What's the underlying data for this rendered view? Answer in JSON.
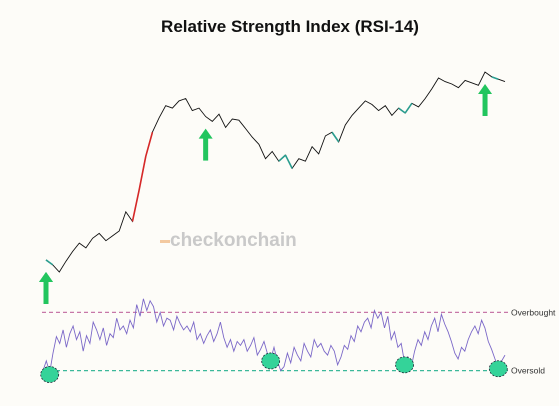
{
  "chart_data": {
    "type": "line",
    "title": "Relative Strength Index (RSI-14)",
    "watermark": "checkonchain",
    "levels": {
      "overbought_label": "Overbought",
      "oversold_label": "Oversold"
    },
    "colors": {
      "price": "#111111",
      "rsi": "#7b68c8",
      "overbought_line": "#c777a8",
      "oversold_line": "#3cb89a",
      "arrow": "#22c55e",
      "marker_fill": "#34d399",
      "overbought_highlight": "#d62828",
      "oversold_highlight": "#2a9d8f",
      "background": "#fdfcf8"
    },
    "price": [
      [
        0,
        44
      ],
      [
        2,
        40
      ],
      [
        4,
        34
      ],
      [
        6,
        43
      ],
      [
        8,
        51
      ],
      [
        10,
        58
      ],
      [
        12,
        54
      ],
      [
        14,
        62
      ],
      [
        16,
        66
      ],
      [
        18,
        60
      ],
      [
        20,
        64
      ],
      [
        22,
        68
      ],
      [
        24,
        84
      ],
      [
        26,
        76
      ],
      [
        28,
        102
      ],
      [
        30,
        130
      ],
      [
        32,
        150
      ],
      [
        34,
        162
      ],
      [
        36,
        172
      ],
      [
        38,
        170
      ],
      [
        40,
        176
      ],
      [
        42,
        178
      ],
      [
        44,
        168
      ],
      [
        46,
        170
      ],
      [
        48,
        163
      ],
      [
        50,
        159
      ],
      [
        52,
        165
      ],
      [
        54,
        154
      ],
      [
        56,
        161
      ],
      [
        58,
        160
      ],
      [
        60,
        153
      ],
      [
        62,
        146
      ],
      [
        64,
        140
      ],
      [
        66,
        128
      ],
      [
        68,
        134
      ],
      [
        70,
        126
      ],
      [
        72,
        131
      ],
      [
        74,
        120
      ],
      [
        76,
        128
      ],
      [
        78,
        126
      ],
      [
        80,
        138
      ],
      [
        82,
        132
      ],
      [
        84,
        147
      ],
      [
        86,
        150
      ],
      [
        88,
        142
      ],
      [
        90,
        156
      ],
      [
        92,
        164
      ],
      [
        94,
        170
      ],
      [
        96,
        176
      ],
      [
        98,
        173
      ],
      [
        100,
        168
      ],
      [
        102,
        172
      ],
      [
        104,
        164
      ],
      [
        106,
        170
      ],
      [
        108,
        166
      ],
      [
        110,
        174
      ],
      [
        112,
        171
      ],
      [
        114,
        178
      ],
      [
        116,
        186
      ],
      [
        118,
        195
      ],
      [
        120,
        192
      ],
      [
        122,
        190
      ],
      [
        124,
        187
      ],
      [
        126,
        193
      ],
      [
        128,
        191
      ],
      [
        130,
        189
      ],
      [
        132,
        200
      ],
      [
        134,
        196
      ],
      [
        136,
        194
      ],
      [
        138,
        192
      ]
    ],
    "rsi": [
      [
        0,
        20
      ],
      [
        1,
        30
      ],
      [
        2,
        18
      ],
      [
        3,
        38
      ],
      [
        4,
        55
      ],
      [
        5,
        48
      ],
      [
        6,
        62
      ],
      [
        7,
        44
      ],
      [
        8,
        58
      ],
      [
        9,
        66
      ],
      [
        10,
        52
      ],
      [
        11,
        60
      ],
      [
        12,
        40
      ],
      [
        13,
        56
      ],
      [
        14,
        48
      ],
      [
        15,
        70
      ],
      [
        16,
        62
      ],
      [
        17,
        52
      ],
      [
        18,
        64
      ],
      [
        19,
        46
      ],
      [
        20,
        58
      ],
      [
        21,
        54
      ],
      [
        22,
        74
      ],
      [
        23,
        62
      ],
      [
        24,
        66
      ],
      [
        25,
        58
      ],
      [
        26,
        72
      ],
      [
        27,
        64
      ],
      [
        28,
        88
      ],
      [
        29,
        76
      ],
      [
        30,
        94
      ],
      [
        31,
        82
      ],
      [
        32,
        92
      ],
      [
        33,
        86
      ],
      [
        34,
        70
      ],
      [
        35,
        80
      ],
      [
        36,
        66
      ],
      [
        37,
        74
      ],
      [
        38,
        72
      ],
      [
        39,
        62
      ],
      [
        40,
        76
      ],
      [
        41,
        68
      ],
      [
        42,
        62
      ],
      [
        43,
        66
      ],
      [
        44,
        60
      ],
      [
        45,
        70
      ],
      [
        46,
        52
      ],
      [
        47,
        58
      ],
      [
        48,
        48
      ],
      [
        49,
        56
      ],
      [
        50,
        62
      ],
      [
        51,
        50
      ],
      [
        52,
        58
      ],
      [
        53,
        70
      ],
      [
        54,
        54
      ],
      [
        55,
        44
      ],
      [
        56,
        52
      ],
      [
        57,
        40
      ],
      [
        58,
        50
      ],
      [
        59,
        46
      ],
      [
        60,
        52
      ],
      [
        61,
        40
      ],
      [
        62,
        46
      ],
      [
        63,
        54
      ],
      [
        64,
        36
      ],
      [
        65,
        42
      ],
      [
        66,
        50
      ],
      [
        67,
        38
      ],
      [
        68,
        32
      ],
      [
        69,
        44
      ],
      [
        70,
        30
      ],
      [
        71,
        20
      ],
      [
        72,
        24
      ],
      [
        73,
        38
      ],
      [
        74,
        28
      ],
      [
        75,
        44
      ],
      [
        76,
        36
      ],
      [
        77,
        30
      ],
      [
        78,
        48
      ],
      [
        79,
        40
      ],
      [
        80,
        34
      ],
      [
        81,
        52
      ],
      [
        82,
        44
      ],
      [
        83,
        48
      ],
      [
        84,
        40
      ],
      [
        85,
        36
      ],
      [
        86,
        46
      ],
      [
        87,
        40
      ],
      [
        88,
        26
      ],
      [
        89,
        34
      ],
      [
        90,
        46
      ],
      [
        91,
        42
      ],
      [
        92,
        56
      ],
      [
        93,
        50
      ],
      [
        94,
        66
      ],
      [
        95,
        60
      ],
      [
        96,
        70
      ],
      [
        97,
        74
      ],
      [
        98,
        64
      ],
      [
        99,
        82
      ],
      [
        100,
        74
      ],
      [
        101,
        80
      ],
      [
        102,
        64
      ],
      [
        103,
        76
      ],
      [
        104,
        52
      ],
      [
        105,
        60
      ],
      [
        106,
        44
      ],
      [
        107,
        48
      ],
      [
        108,
        28
      ],
      [
        109,
        34
      ],
      [
        110,
        24
      ],
      [
        111,
        40
      ],
      [
        112,
        52
      ],
      [
        113,
        46
      ],
      [
        114,
        60
      ],
      [
        115,
        52
      ],
      [
        116,
        66
      ],
      [
        117,
        74
      ],
      [
        118,
        60
      ],
      [
        119,
        78
      ],
      [
        120,
        68
      ],
      [
        121,
        60
      ],
      [
        122,
        50
      ],
      [
        123,
        38
      ],
      [
        124,
        32
      ],
      [
        125,
        44
      ],
      [
        126,
        40
      ],
      [
        127,
        52
      ],
      [
        128,
        60
      ],
      [
        129,
        66
      ],
      [
        130,
        58
      ],
      [
        131,
        72
      ],
      [
        132,
        64
      ],
      [
        133,
        50
      ],
      [
        134,
        42
      ],
      [
        135,
        32
      ],
      [
        136,
        24
      ],
      [
        137,
        30
      ],
      [
        138,
        36
      ]
    ],
    "signals": [
      {
        "price_index": 1,
        "rsi_index": 2
      },
      {
        "price_index": 48,
        "rsi_index": 68
      },
      {
        "price_index": 97,
        "rsi_index": 108
      },
      {
        "price_index": 132,
        "rsi_index": 136
      }
    ],
    "rsi_ylim": [
      0,
      100
    ],
    "overbought_level": 80,
    "oversold_level": 20,
    "grid": false,
    "legend": "none"
  }
}
